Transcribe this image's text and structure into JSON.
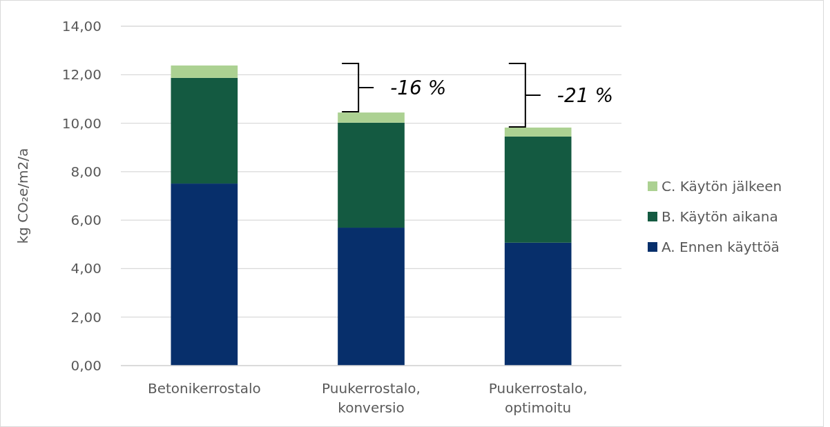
{
  "chart_data": {
    "type": "bar",
    "stacked": true,
    "ylabel": "kg CO₂e/m2/a",
    "categories": [
      "Betonikerrostalo",
      "Puukerrostalo, konversio",
      "Puukerrostalo, optimoitu"
    ],
    "series": [
      {
        "name": "A. Ennen käyttöä",
        "color": "#072f6b",
        "values": [
          7.51,
          5.69,
          5.07
        ]
      },
      {
        "name": "B. Käytön aikana",
        "color": "#145a41",
        "values": [
          4.36,
          4.33,
          4.38
        ]
      },
      {
        "name": "C. Käytön jälkeen",
        "color": "#acd192",
        "values": [
          0.51,
          0.42,
          0.37
        ]
      }
    ],
    "ylim": [
      0,
      14
    ],
    "yticks": [
      {
        "value": 0,
        "label": "0,00"
      },
      {
        "value": 2,
        "label": "2,00"
      },
      {
        "value": 4,
        "label": "4,00"
      },
      {
        "value": 6,
        "label": "6,00"
      },
      {
        "value": 8,
        "label": "8,00"
      },
      {
        "value": 10,
        "label": "10,00"
      },
      {
        "value": 12,
        "label": "12,00"
      },
      {
        "value": 14,
        "label": "14,00"
      }
    ],
    "grid": "y",
    "legend": "right",
    "annotations": [
      "-16 %",
      "-21 %"
    ]
  }
}
